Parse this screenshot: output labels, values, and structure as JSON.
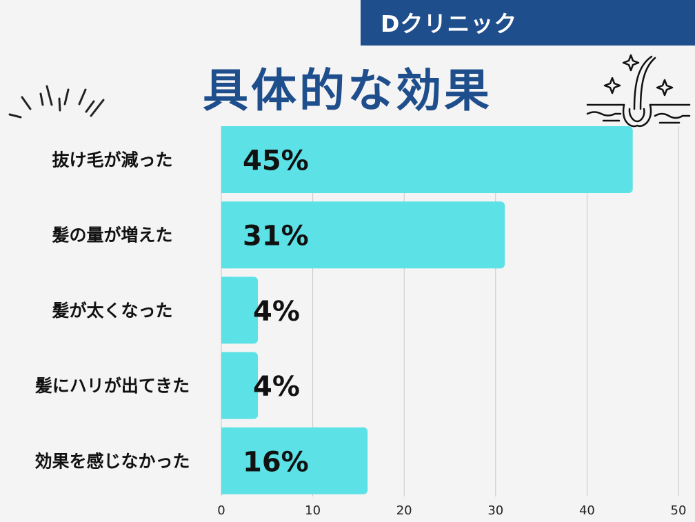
{
  "brand": "Dクリニック",
  "title": "具体的な効果",
  "colors": {
    "bar": "#5ce1e6",
    "brand_bar": "#1f4e8c",
    "title": "#1f4e8c",
    "grid": "#c8c8c8",
    "background": "#f4f4f4"
  },
  "chart_data": {
    "type": "bar",
    "orientation": "horizontal",
    "categories": [
      "抜け毛が減った",
      "髪の量が増えた",
      "髪が太くなった",
      "髪にハリが出てきた",
      "効果を感じなかった"
    ],
    "values": [
      45,
      31,
      4,
      4,
      16
    ],
    "data_labels": [
      "45%",
      "31%",
      "4%",
      "4%",
      "16%"
    ],
    "x_ticks": [
      "0",
      "10",
      "20",
      "30",
      "40",
      "50"
    ],
    "xlim": [
      0,
      50
    ],
    "grid": true
  }
}
